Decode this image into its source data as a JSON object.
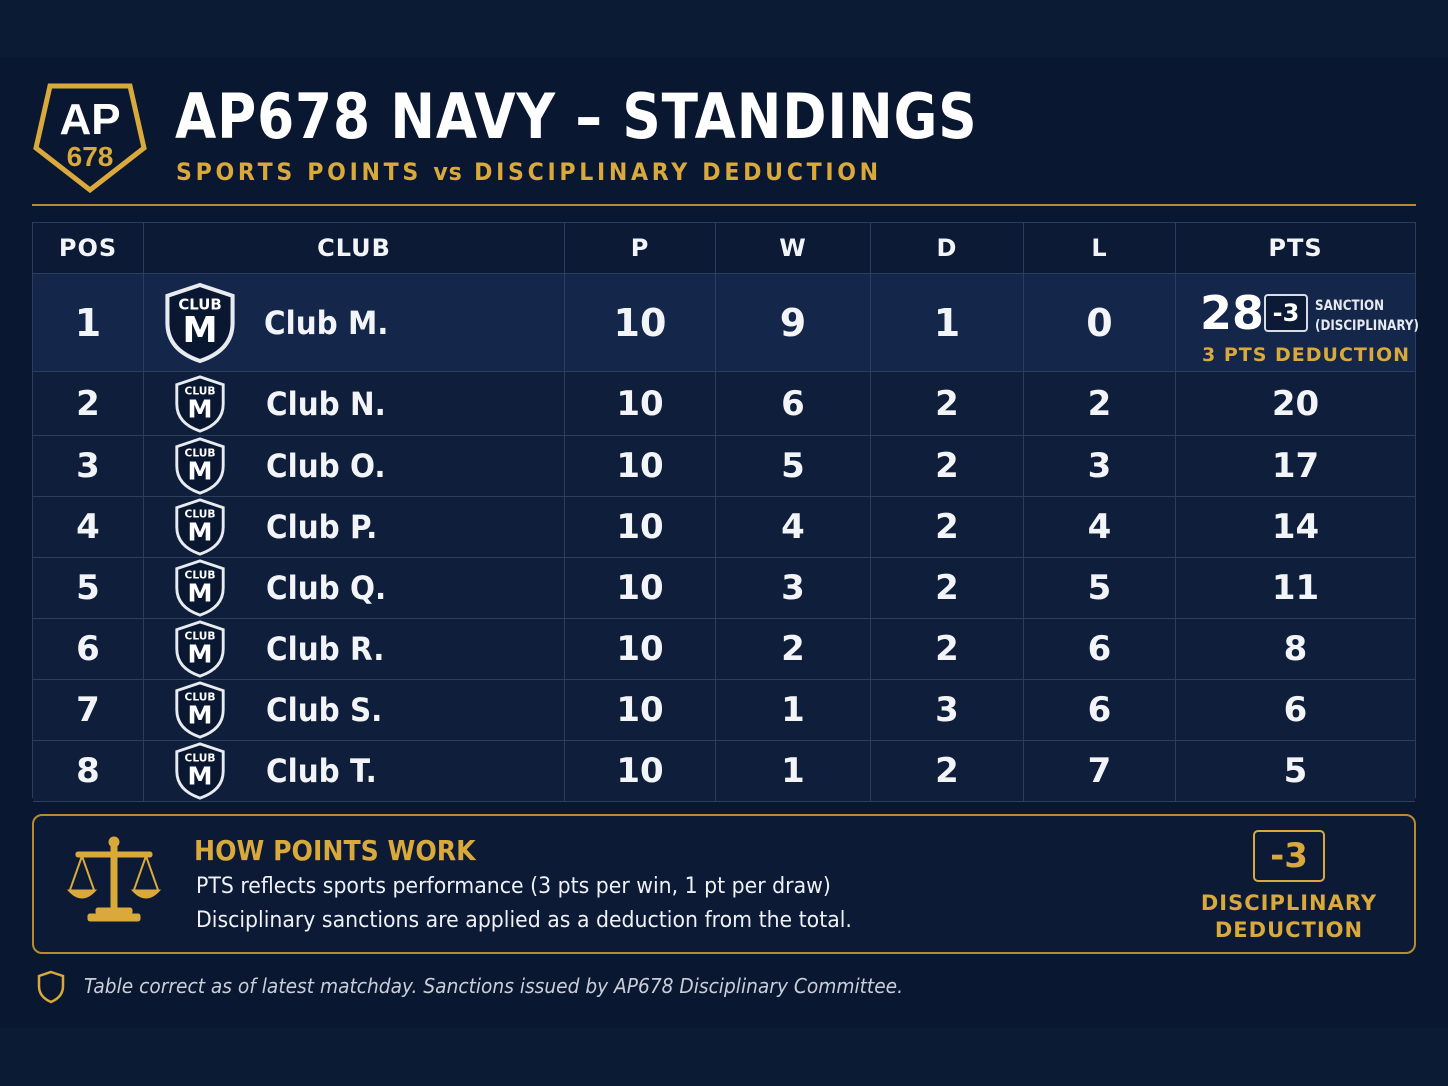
{
  "header": {
    "logo_top": "AP",
    "logo_bottom": "678",
    "title": "AP678 NAVY – STANDINGS",
    "subtitle_a": "SPORTS POINTS",
    "subtitle_vs": "vs",
    "subtitle_b": "DISCIPLINARY DEDUCTION"
  },
  "table": {
    "columns": [
      "POS",
      "CLUB",
      "P",
      "W",
      "D",
      "L",
      "PTS"
    ],
    "crest_top": "CLUB",
    "crest_letter": "M",
    "rows": [
      {
        "pos": "1",
        "club": "Club M.",
        "p": "10",
        "w": "9",
        "d": "1",
        "l": "0",
        "pts": "28",
        "deduction": "-3",
        "sanction_line1": "SANCTION",
        "sanction_line2": "(DISCIPLINARY)",
        "deduction_note": "3 PTS DEDUCTION"
      },
      {
        "pos": "2",
        "club": "Club N.",
        "p": "10",
        "w": "6",
        "d": "2",
        "l": "2",
        "pts": "20"
      },
      {
        "pos": "3",
        "club": "Club O.",
        "p": "10",
        "w": "5",
        "d": "2",
        "l": "3",
        "pts": "17"
      },
      {
        "pos": "4",
        "club": "Club P.",
        "p": "10",
        "w": "4",
        "d": "2",
        "l": "4",
        "pts": "14"
      },
      {
        "pos": "5",
        "club": "Club Q.",
        "p": "10",
        "w": "3",
        "d": "2",
        "l": "5",
        "pts": "11"
      },
      {
        "pos": "6",
        "club": "Club R.",
        "p": "10",
        "w": "2",
        "d": "2",
        "l": "6",
        "pts": "8"
      },
      {
        "pos": "7",
        "club": "Club S.",
        "p": "10",
        "w": "1",
        "d": "3",
        "l": "6",
        "pts": "6"
      },
      {
        "pos": "8",
        "club": "Club T.",
        "p": "10",
        "w": "1",
        "d": "2",
        "l": "7",
        "pts": "5"
      }
    ]
  },
  "info": {
    "icon": "scales-icon",
    "title": "HOW POINTS WORK",
    "line1": "PTS reflects sports performance (3 pts per win, 1 pt per draw)",
    "line2": "Disciplinary sanctions are applied as a deduction from the total.",
    "deduction_value": "-3",
    "deduction_label1": "DISCIPLINARY",
    "deduction_label2": "DEDUCTION"
  },
  "footer": {
    "icon": "shield-icon",
    "note": "Table correct as of latest matchday. Sanctions issued by AP678 Disciplinary Committee."
  },
  "colors": {
    "background": "#0a1731",
    "gold": "#d9a93b",
    "text": "#f2f4f8",
    "grid": "#2c3e5e"
  }
}
